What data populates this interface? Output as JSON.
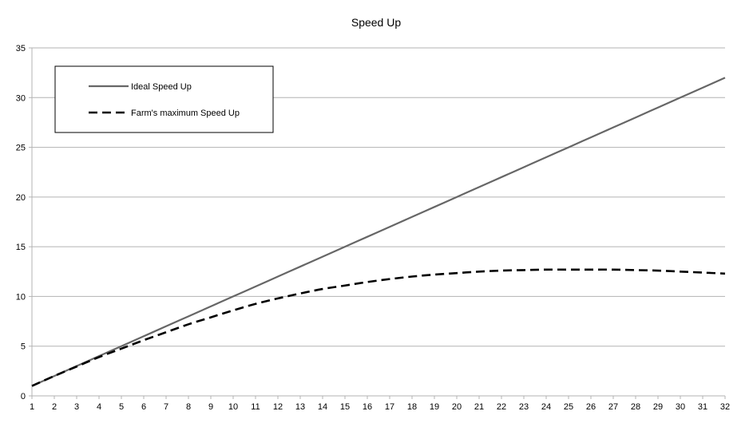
{
  "chart_data": {
    "type": "line",
    "title": "Speed Up",
    "xlabel": "",
    "ylabel": "",
    "x": [
      1,
      2,
      3,
      4,
      5,
      6,
      7,
      8,
      9,
      10,
      11,
      12,
      13,
      14,
      15,
      16,
      17,
      18,
      19,
      20,
      21,
      22,
      23,
      24,
      25,
      26,
      27,
      28,
      29,
      30,
      31,
      32
    ],
    "xlim": [
      1,
      32
    ],
    "ylim": [
      0,
      35
    ],
    "yticks": [
      0,
      5,
      10,
      15,
      20,
      25,
      30,
      35
    ],
    "grid": "horizontal",
    "legend_position": "top-left",
    "series": [
      {
        "name": "Ideal Speed Up",
        "style": "solid",
        "color": "#666666",
        "values": [
          1,
          2,
          3,
          4,
          5,
          6,
          7,
          8,
          9,
          10,
          11,
          12,
          13,
          14,
          15,
          16,
          17,
          18,
          19,
          20,
          21,
          22,
          23,
          24,
          25,
          26,
          27,
          28,
          29,
          30,
          31,
          32
        ]
      },
      {
        "name": "Farm's maximum Speed Up",
        "style": "dashed",
        "color": "#000000",
        "values": [
          1.0,
          2.0,
          2.95,
          3.9,
          4.75,
          5.6,
          6.4,
          7.2,
          7.9,
          8.6,
          9.25,
          9.8,
          10.3,
          10.75,
          11.1,
          11.45,
          11.75,
          12.0,
          12.2,
          12.35,
          12.5,
          12.6,
          12.65,
          12.7,
          12.7,
          12.7,
          12.7,
          12.65,
          12.6,
          12.5,
          12.4,
          12.3
        ]
      }
    ]
  }
}
